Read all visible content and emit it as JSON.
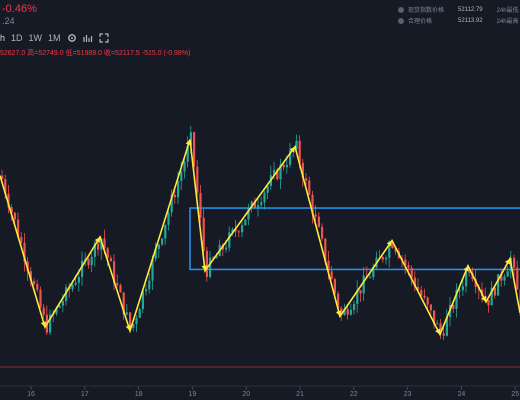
{
  "header": {
    "change_pct": "-0.46%",
    "sub_value": ".24",
    "timeframes": [
      "h",
      "1D",
      "1W",
      "1M"
    ],
    "active_timeframe": "h",
    "ohlc": "52627.0  高=52749.0  低=51989.0  收=52117.5  -515.0 (-0.98%)"
  },
  "stats": [
    {
      "label": "现货指数价格",
      "value": "52112.79",
      "label2": "24h最低",
      "value2": "51706"
    },
    {
      "label": "合理价格",
      "value": "52113.92",
      "label2": "24h最高",
      "value2": "57188"
    }
  ],
  "colors": {
    "background": "#161a25",
    "up": "#26a69a",
    "down": "#ef5350",
    "pattern": "#ffeb3b",
    "box": "#2196f3",
    "line": "#8b2a33"
  },
  "chart_data": {
    "type": "candlestick",
    "x_ticks": [
      "16",
      "17",
      "18",
      "19",
      "20",
      "21",
      "22",
      "23",
      "24",
      "25"
    ],
    "price_range_approx": [
      50800,
      55300
    ],
    "pattern_points_approx_price": [
      53700,
      51600,
      52850,
      51550,
      54200,
      52380,
      54100,
      51750,
      52800,
      51500,
      52450,
      51950,
      52550,
      51800,
      52500
    ],
    "range_box_approx_price": {
      "top": 53250,
      "bottom": 52400
    }
  }
}
